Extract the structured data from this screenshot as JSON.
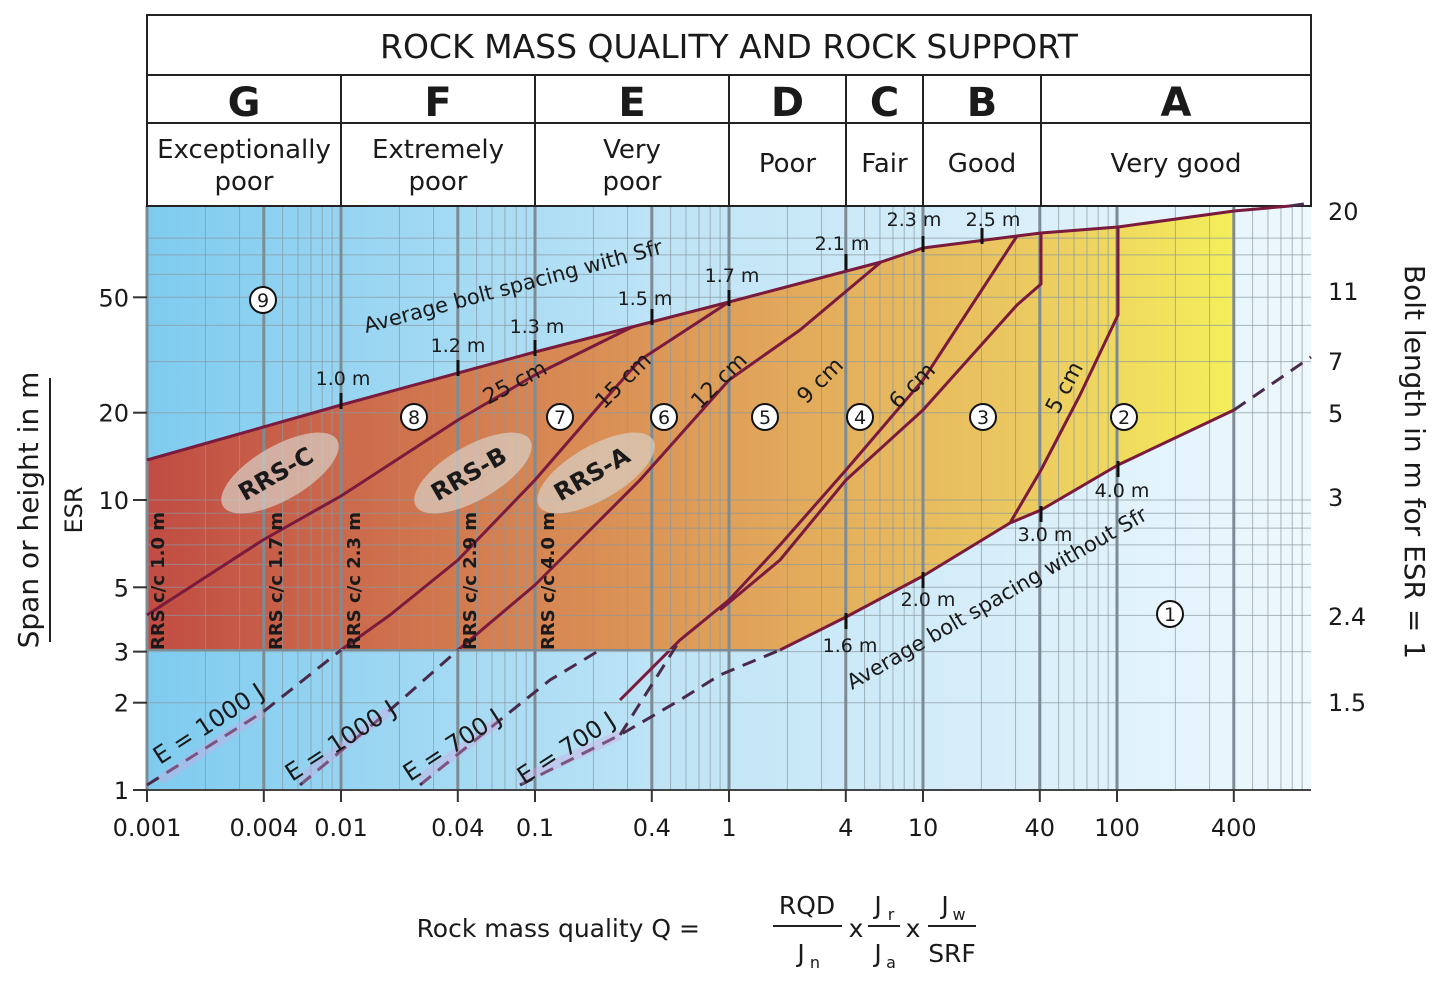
{
  "title": "ROCK MASS QUALITY AND ROCK SUPPORT",
  "classes": [
    {
      "letter": "G",
      "desc": [
        "Exceptionally",
        "poor"
      ]
    },
    {
      "letter": "F",
      "desc": [
        "Extremely",
        "poor"
      ]
    },
    {
      "letter": "E",
      "desc": [
        "Very",
        "poor"
      ]
    },
    {
      "letter": "D",
      "desc": [
        "Poor"
      ]
    },
    {
      "letter": "C",
      "desc": [
        "Fair"
      ]
    },
    {
      "letter": "B",
      "desc": [
        "Good"
      ]
    },
    {
      "letter": "A",
      "desc": [
        "Very good"
      ]
    }
  ],
  "x_ticks": [
    "0.001",
    "0.004",
    "0.01",
    "0.04",
    "0.1",
    "0.4",
    "1",
    "4",
    "10",
    "40",
    "100",
    "400"
  ],
  "y_ticks": [
    "1",
    "2",
    "3",
    "5",
    "10",
    "20",
    "50"
  ],
  "bolt_ticks": [
    "20",
    "11",
    "7",
    "5",
    "3",
    "2.4",
    "1.5"
  ],
  "y_axis_label": [
    "Span or height in m",
    "ESR"
  ],
  "right_axis_label": "Bolt length in m for ESR = 1",
  "x_axis_label": {
    "prefix": "Rock mass quality  Q =",
    "f1_num": "RQD",
    "f1_den": "J",
    "f1_den_sub": "n",
    "times": "x",
    "f2_num": "J",
    "f2_num_sub": "r",
    "f2_den": "J",
    "f2_den_sub": "a",
    "f3_num": "J",
    "f3_num_sub": "w",
    "f3_den": "SRF"
  },
  "curve_labels": {
    "with_sfr": "Average bolt spacing with Sfr",
    "without_sfr": "Average bolt spacing without Sfr"
  },
  "spacing_upper": [
    "1.0 m",
    "1.2 m",
    "1.3 m",
    "1.5 m",
    "1.7 m",
    "2.1 m",
    "2.3 m",
    "2.5 m"
  ],
  "spacing_lower": [
    "1.6 m",
    "2.0 m",
    "3.0 m",
    "4.0 m"
  ],
  "thickness": [
    "25 cm",
    "15 cm",
    "12 cm",
    "9 cm",
    "6 cm",
    "5 cm"
  ],
  "zones": [
    "1",
    "2",
    "3",
    "4",
    "5",
    "6",
    "7",
    "8",
    "9"
  ],
  "rrs_types": [
    "RRS-C",
    "RRS-B",
    "RRS-A"
  ],
  "rrs_spacing": [
    "RRS  c/c 1.0 m",
    "RRS  c/c 1.7 m",
    "RRS  c/c 2.3 m",
    "RRS  c/c 2.9 m",
    "RRS  c/c 4.0 m"
  ],
  "energy": [
    "E = 1000 J",
    "E = 1000 J",
    "E = 700 J",
    "E = 700 J"
  ],
  "colors": {
    "curve": "#7a1a3c",
    "grid": "#7d8b94",
    "blue_light": "#e8f4fb",
    "blue_dark": "#7ecbef",
    "fill_red": "#c8543e",
    "fill_orange": "#e09a50",
    "fill_yellow": "#f3ea52"
  }
}
